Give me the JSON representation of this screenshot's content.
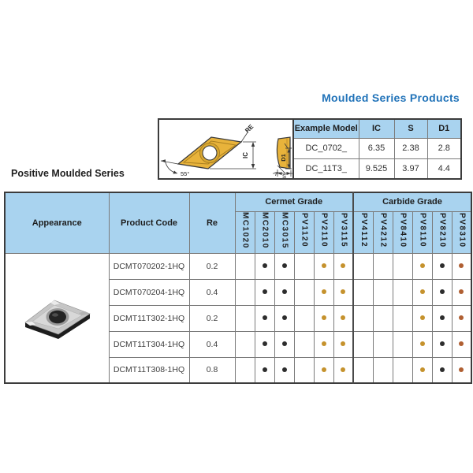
{
  "page": {
    "title": "Moulded Series Products",
    "section_heading": "Positive Moulded Series"
  },
  "colors": {
    "accent_blue": "#2173b9",
    "table_header_bg": "#a9d3ef",
    "insert_gold": "#e8b33b",
    "dot": {
      "black": "#2d2d2d",
      "amber": "#c5922d",
      "rust": "#b05f32"
    }
  },
  "diagram": {
    "labels": {
      "corner_radius": "RE",
      "inscribed_circle": "IC",
      "point_angle": "55°",
      "thickness": "S",
      "hole_depth": "D1",
      "relief_angle": "7°"
    }
  },
  "example_table": {
    "headers": [
      "Example Model",
      "IC",
      "S",
      "D1"
    ],
    "rows": [
      {
        "model": "DC_0702_",
        "ic": "6.35",
        "s": "2.38",
        "d1": "2.8"
      },
      {
        "model": "DC_11T3_",
        "ic": "9.525",
        "s": "3.97",
        "d1": "4.4"
      }
    ]
  },
  "main_table": {
    "col_appearance": "Appearance",
    "col_product_code": "Product Code",
    "col_re": "Re",
    "group_cermet": "Cermet Grade",
    "group_carbide": "Carbide Grade",
    "cermet_columns": [
      "MC1020",
      "MC2010",
      "MC3015",
      "PV1120",
      "PV2110",
      "PV3115"
    ],
    "carbide_columns": [
      "PV4112",
      "PV4212",
      "PV8410",
      "PV8110",
      "PV8210",
      "PV8310"
    ],
    "rows": [
      {
        "product_code": "DCMT070202-1HQ",
        "re": "0.2",
        "dots": [
          "",
          "black",
          "black",
          "",
          "amber",
          "amber",
          "",
          "",
          "",
          "amber",
          "black",
          "rust"
        ]
      },
      {
        "product_code": "DCMT070204-1HQ",
        "re": "0.4",
        "dots": [
          "",
          "black",
          "black",
          "",
          "amber",
          "amber",
          "",
          "",
          "",
          "amber",
          "black",
          "rust"
        ]
      },
      {
        "product_code": "DCMT11T302-1HQ",
        "re": "0.2",
        "dots": [
          "",
          "black",
          "black",
          "",
          "amber",
          "amber",
          "",
          "",
          "",
          "amber",
          "black",
          "rust"
        ]
      },
      {
        "product_code": "DCMT11T304-1HQ",
        "re": "0.4",
        "dots": [
          "",
          "black",
          "black",
          "",
          "amber",
          "amber",
          "",
          "",
          "",
          "amber",
          "black",
          "rust"
        ]
      },
      {
        "product_code": "DCMT11T308-1HQ",
        "re": "0.8",
        "dots": [
          "",
          "black",
          "black",
          "",
          "amber",
          "amber",
          "",
          "",
          "",
          "amber",
          "black",
          "rust"
        ]
      }
    ]
  }
}
